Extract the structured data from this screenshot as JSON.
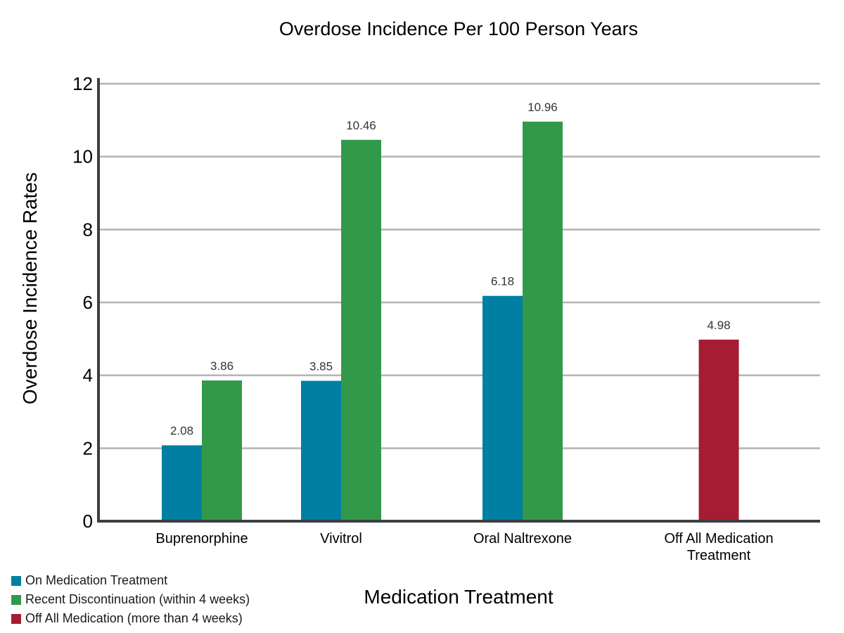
{
  "chart_data": {
    "type": "bar",
    "title": "Overdose Incidence Per 100 Person Years",
    "xlabel": "Medication Treatment",
    "ylabel": "Overdose Incidence Rates",
    "ylim": [
      0,
      12
    ],
    "yticks": [
      "0",
      "2",
      "4",
      "6",
      "8",
      "10",
      "12"
    ],
    "grid": true,
    "legend_position": "bottom-left",
    "categories": [
      [
        "Buprenorphine"
      ],
      [
        "Vivitrol"
      ],
      [
        "Oral Naltrexone"
      ],
      [
        "Off All Medication",
        "Treatment"
      ]
    ],
    "series": [
      {
        "name": "On Medication Treatment",
        "color": "#007fa3",
        "values": [
          2.08,
          3.85,
          6.18,
          null
        ],
        "labels": [
          "2.08",
          "3.85",
          "6.18",
          ""
        ]
      },
      {
        "name": "Recent Discontinuation (within 4 weeks)",
        "color": "#33994a",
        "values": [
          3.86,
          10.46,
          10.96,
          null
        ],
        "labels": [
          "3.86",
          "10.46",
          "10.96",
          ""
        ]
      },
      {
        "name": "Off All Medication (more than 4 weeks)",
        "color": "#a51d33",
        "values": [
          null,
          null,
          null,
          4.98
        ],
        "labels": [
          "",
          "",
          "",
          "4.98"
        ]
      }
    ]
  }
}
